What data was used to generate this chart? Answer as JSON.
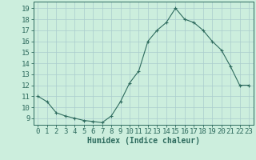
{
  "x": [
    0,
    1,
    2,
    3,
    4,
    5,
    6,
    7,
    8,
    9,
    10,
    11,
    12,
    13,
    14,
    15,
    16,
    17,
    18,
    19,
    20,
    21,
    22,
    23
  ],
  "y": [
    11,
    10.5,
    9.5,
    9.2,
    9.0,
    8.8,
    8.7,
    8.6,
    9.2,
    10.5,
    12.2,
    13.3,
    16.0,
    17.0,
    17.7,
    19.0,
    18.0,
    17.7,
    17.0,
    16.0,
    15.2,
    13.7,
    12.0,
    12.0
  ],
  "line_color": "#2e6b5e",
  "marker": "+",
  "marker_size": 3,
  "xlabel": "Humidex (Indice chaleur)",
  "ylabel_ticks": [
    9,
    10,
    11,
    12,
    13,
    14,
    15,
    16,
    17,
    18,
    19
  ],
  "ylim": [
    8.4,
    19.6
  ],
  "xlim": [
    -0.5,
    23.5
  ],
  "bg_color": "#cceedd",
  "grid_color": "#aacccc",
  "label_fontsize": 7,
  "tick_fontsize": 6.5
}
